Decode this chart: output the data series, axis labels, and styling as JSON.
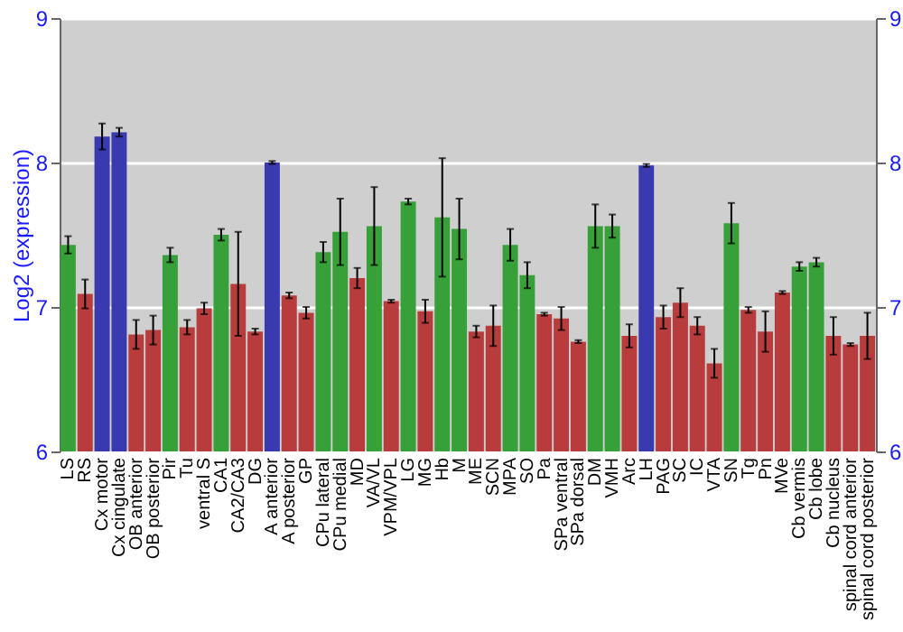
{
  "chart_data": {
    "type": "bar",
    "ylabel": "Log2 (expression)",
    "categories": [
      "LS",
      "RS",
      "Cx motor",
      "Cx cingulate",
      "OB anterior",
      "OB posterior",
      "Pir",
      "Tu",
      "ventral S",
      "CA1",
      "CA2/CA3",
      "DG",
      "A anterior",
      "A posterior",
      "GP",
      "CPu lateral",
      "CPu medial",
      "MD",
      "VA/VL",
      "VPM/VPL",
      "LG",
      "MG",
      "Hb",
      "M",
      "ME",
      "SCN",
      "MPA",
      "SO",
      "Pa",
      "SPa ventral",
      "SPa dorsal",
      "DM",
      "VMH",
      "Arc",
      "LH",
      "PAG",
      "SC",
      "IC",
      "VTA",
      "SN",
      "Tg",
      "Pn",
      "MVe",
      "Cb vermis",
      "Cb lobe",
      "Cb nucleus",
      "spinal cord anterior",
      "spinal cord posterior"
    ],
    "values": [
      7.43,
      7.09,
      8.18,
      8.21,
      6.81,
      6.84,
      7.36,
      6.86,
      6.99,
      7.5,
      7.16,
      6.83,
      8.0,
      7.08,
      6.96,
      7.38,
      7.52,
      7.2,
      7.56,
      7.04,
      7.73,
      6.97,
      7.62,
      7.54,
      6.83,
      6.87,
      7.43,
      7.22,
      6.95,
      6.92,
      6.76,
      7.56,
      7.56,
      6.8,
      7.98,
      6.93,
      7.03,
      6.87,
      6.61,
      7.58,
      6.98,
      6.83,
      7.1,
      7.28,
      7.31,
      6.8,
      6.74,
      6.8
    ],
    "errors": [
      0.06,
      0.1,
      0.09,
      0.03,
      0.1,
      0.1,
      0.05,
      0.05,
      0.04,
      0.04,
      0.36,
      0.02,
      0.01,
      0.02,
      0.04,
      0.07,
      0.23,
      0.07,
      0.27,
      0.01,
      0.02,
      0.08,
      0.41,
      0.21,
      0.04,
      0.14,
      0.11,
      0.09,
      0.01,
      0.08,
      0.01,
      0.15,
      0.08,
      0.08,
      0.01,
      0.08,
      0.1,
      0.06,
      0.1,
      0.14,
      0.02,
      0.14,
      0.01,
      0.03,
      0.03,
      0.13,
      0.01,
      0.16
    ],
    "colors": [
      "#38a038",
      "#b83c3c",
      "#3a3ab0",
      "#3a3ab0",
      "#b83c3c",
      "#b83c3c",
      "#38a038",
      "#b83c3c",
      "#b83c3c",
      "#38a038",
      "#b83c3c",
      "#b83c3c",
      "#3a3ab0",
      "#b83c3c",
      "#b83c3c",
      "#38a038",
      "#38a038",
      "#b83c3c",
      "#38a038",
      "#b83c3c",
      "#38a038",
      "#b83c3c",
      "#38a038",
      "#38a038",
      "#b83c3c",
      "#b83c3c",
      "#38a038",
      "#38a038",
      "#b83c3c",
      "#b83c3c",
      "#b83c3c",
      "#38a038",
      "#38a038",
      "#b83c3c",
      "#3a3ab0",
      "#b83c3c",
      "#b83c3c",
      "#b83c3c",
      "#b83c3c",
      "#38a038",
      "#b83c3c",
      "#b83c3c",
      "#b83c3c",
      "#38a038",
      "#38a038",
      "#b83c3c",
      "#b83c3c",
      "#b83c3c"
    ],
    "ylim": [
      6,
      9
    ],
    "yticks": [
      6,
      7,
      8,
      9
    ],
    "y2lim": [
      6,
      9
    ],
    "y2ticks": [
      6,
      7,
      8,
      9
    ],
    "grid": true
  }
}
